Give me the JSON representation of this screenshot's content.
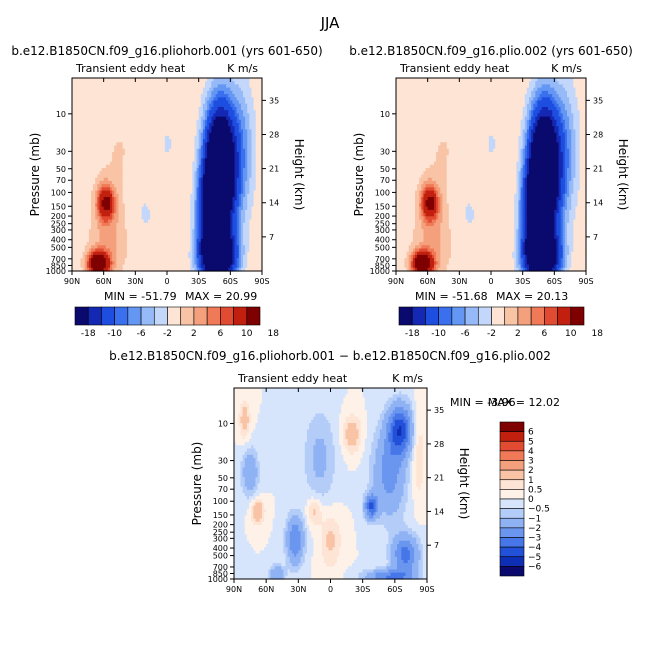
{
  "figure": {
    "title": "JJA"
  },
  "chart_data": [
    {
      "type": "heatmap",
      "title": "b.e12.B1850CN.f09_g16.pliohorb.001 (yrs 601-650)",
      "subtitle_left": "Transient eddy heat",
      "subtitle_right": "K m/s",
      "ylabel": "Pressure (mb)",
      "ylabel_right": "Height (km)",
      "x_ticks": [
        "90N",
        "60N",
        "30N",
        "0",
        "30S",
        "60S",
        "90S"
      ],
      "xlim": [
        90,
        -90
      ],
      "y_ticks": [
        "10",
        "30",
        "50",
        "70",
        "100",
        "150",
        "200",
        "250",
        "300",
        "400",
        "500",
        "700",
        "850",
        "1000"
      ],
      "y_tick_values": [
        10,
        30,
        50,
        70,
        100,
        150,
        200,
        250,
        300,
        400,
        500,
        700,
        850,
        1000
      ],
      "ylim": [
        1000,
        3.5
      ],
      "y_scale": "log",
      "height_ticks": [
        "35",
        "28",
        "21",
        "14",
        "7"
      ],
      "height_tick_values": [
        35,
        28,
        21,
        14,
        7
      ],
      "min_label": "MIN = -51.79",
      "max_label": "MAX = 20.99",
      "colorbar": {
        "orientation": "horizontal",
        "labels": [
          "-18",
          "-10",
          "-6",
          "-2",
          "2",
          "6",
          "10",
          "18"
        ],
        "colors": [
          "#0a0a6e",
          "#1428b4",
          "#1e4ee0",
          "#3a70ee",
          "#6496f4",
          "#96b9f8",
          "#c3d7fb",
          "#fde4d4",
          "#f9c3a6",
          "#f5a07c",
          "#f07a58",
          "#e04b32",
          "#c2200f",
          "#7e0000"
        ]
      }
    },
    {
      "type": "heatmap",
      "title": "b.e12.B1850CN.f09_g16.plio.002 (yrs 601-650)",
      "subtitle_left": "Transient eddy heat",
      "subtitle_right": "K m/s",
      "ylabel": "Pressure (mb)",
      "ylabel_right": "Height (km)",
      "x_ticks": [
        "90N",
        "60N",
        "30N",
        "0",
        "30S",
        "60S",
        "90S"
      ],
      "xlim": [
        90,
        -90
      ],
      "y_ticks": [
        "10",
        "30",
        "50",
        "70",
        "100",
        "150",
        "200",
        "250",
        "300",
        "400",
        "500",
        "700",
        "850",
        "1000"
      ],
      "y_tick_values": [
        10,
        30,
        50,
        70,
        100,
        150,
        200,
        250,
        300,
        400,
        500,
        700,
        850,
        1000
      ],
      "ylim": [
        1000,
        3.5
      ],
      "y_scale": "log",
      "height_ticks": [
        "35",
        "28",
        "21",
        "14",
        "7"
      ],
      "height_tick_values": [
        35,
        28,
        21,
        14,
        7
      ],
      "min_label": "MIN = -51.68",
      "max_label": "MAX = 20.13",
      "colorbar": {
        "orientation": "horizontal",
        "labels": [
          "-18",
          "-10",
          "-6",
          "-2",
          "2",
          "6",
          "10",
          "18"
        ],
        "colors": [
          "#0a0a6e",
          "#1428b4",
          "#1e4ee0",
          "#3a70ee",
          "#6496f4",
          "#96b9f8",
          "#c3d7fb",
          "#fde4d4",
          "#f9c3a6",
          "#f5a07c",
          "#f07a58",
          "#e04b32",
          "#c2200f",
          "#7e0000"
        ]
      }
    },
    {
      "type": "heatmap",
      "title": "b.e12.B1850CN.f09_g16.pliohorb.001 − b.e12.B1850CN.f09_g16.plio.002",
      "subtitle_left": "Transient eddy heat",
      "subtitle_right": "K m/s",
      "ylabel": "Pressure (mb)",
      "ylabel_right": "Height (km)",
      "x_ticks": [
        "90N",
        "60N",
        "30N",
        "0",
        "30S",
        "60S",
        "90S"
      ],
      "xlim": [
        90,
        -90
      ],
      "y_ticks": [
        "10",
        "30",
        "50",
        "70",
        "100",
        "150",
        "200",
        "250",
        "300",
        "400",
        "500",
        "700",
        "850",
        "1000"
      ],
      "y_tick_values": [
        10,
        30,
        50,
        70,
        100,
        150,
        200,
        250,
        300,
        400,
        500,
        700,
        850,
        1000
      ],
      "ylim": [
        1000,
        3.5
      ],
      "y_scale": "log",
      "height_ticks": [
        "35",
        "28",
        "21",
        "14",
        "7"
      ],
      "height_tick_values": [
        35,
        28,
        21,
        14,
        7
      ],
      "min_label": "MIN =   -3.96",
      "max_label": "MAX =   12.02",
      "colorbar": {
        "orientation": "vertical",
        "labels": [
          "6",
          "5",
          "4",
          "3",
          "2",
          "1",
          "0.5",
          "0",
          "−0.5",
          "−1",
          "−2",
          "−3",
          "−4",
          "−5",
          "−6"
        ],
        "colors": [
          "#7e0000",
          "#c2200f",
          "#e04b32",
          "#f07a58",
          "#f5a07c",
          "#f9c3a6",
          "#fde4d4",
          "#fdf1e8",
          "#d7e5fc",
          "#b4cdf8",
          "#8fb2f4",
          "#6a96ef",
          "#4676e8",
          "#2350d8",
          "#0e2fb4",
          "#0a0a6e"
        ]
      }
    }
  ]
}
